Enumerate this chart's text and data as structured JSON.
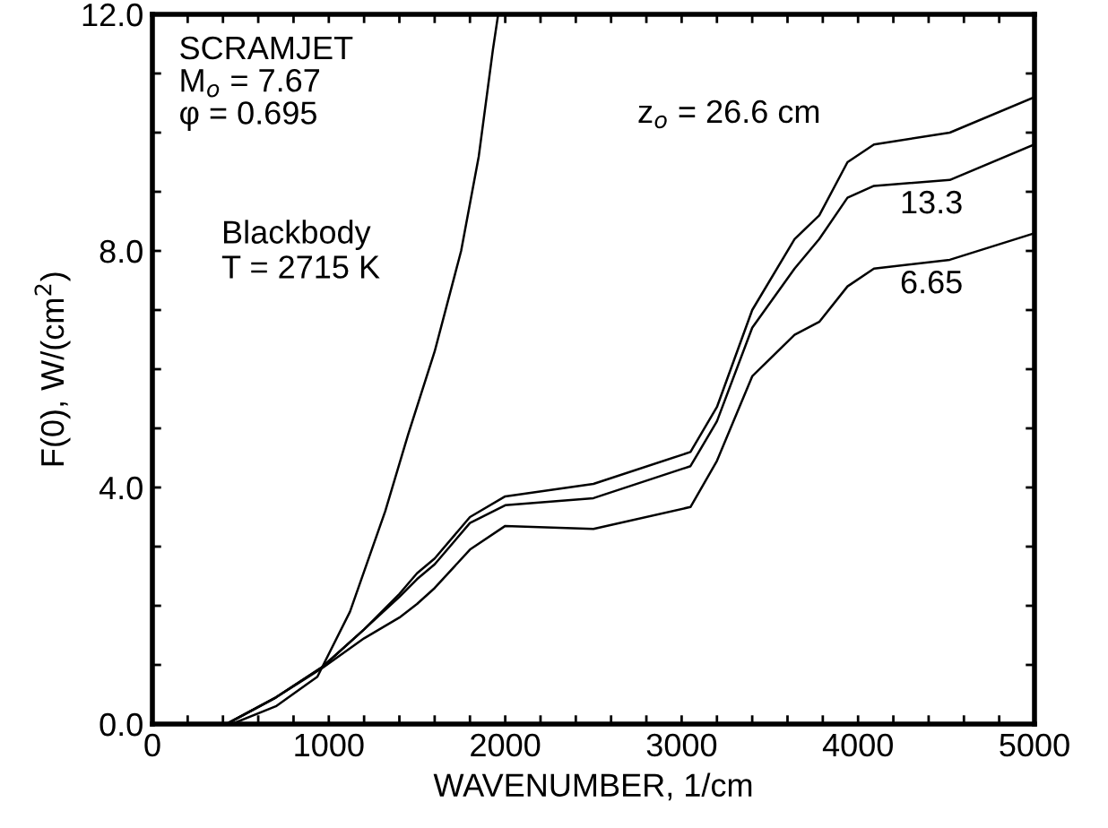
{
  "chart_data": {
    "type": "line",
    "xlabel": "WAVENUMBER, 1/cm",
    "ylabel": "F(0), W/(cm$^{2}$)",
    "annotations": [
      "SCRAMJET\nM$_{o}$ = 7.67\nφ = 0.695"
    ],
    "xlim": [
      0,
      5000
    ],
    "ylim": [
      0,
      12
    ],
    "xticks": [
      0,
      {
        "value": 200,
        "label": null
      },
      {
        "value": 400,
        "label": null
      },
      {
        "value": 600,
        "label": null
      },
      {
        "value": 800,
        "label": null
      },
      1000,
      {
        "value": 1200,
        "label": null
      },
      {
        "value": 1400,
        "label": null
      },
      {
        "value": 1600,
        "label": null
      },
      {
        "value": 1800,
        "label": null
      },
      2000,
      {
        "value": 2200,
        "label": null
      },
      {
        "value": 2400,
        "label": null
      },
      {
        "value": 2600,
        "label": null
      },
      {
        "value": 2800,
        "label": null
      },
      3000,
      {
        "value": 3200,
        "label": null
      },
      {
        "value": 3400,
        "label": null
      },
      {
        "value": 3600,
        "label": null
      },
      {
        "value": 3800,
        "label": null
      },
      4000,
      {
        "value": 4200,
        "label": null
      },
      {
        "value": 4400,
        "label": null
      },
      {
        "value": 4600,
        "label": null
      },
      {
        "value": 4800,
        "label": null
      },
      5000
    ],
    "yticks": [
      {
        "value": 0,
        "label": "0.0"
      },
      {
        "value": 1,
        "label": null
      },
      {
        "value": 2,
        "label": null
      },
      {
        "value": 3,
        "label": null
      },
      {
        "value": 4,
        "label": "4.0"
      },
      {
        "value": 5,
        "label": null
      },
      {
        "value": 6,
        "label": null
      },
      {
        "value": 7,
        "label": null
      },
      {
        "value": 8,
        "label": "8.0"
      },
      {
        "value": 9,
        "label": null
      },
      {
        "value": 10,
        "label": null
      },
      {
        "value": 11,
        "label": null
      },
      {
        "value": 12,
        "label": "12.0"
      }
    ],
    "grid": false,
    "series": [
      {
        "name": "Blackbody\nT = 2715 K",
        "color": "#000000",
        "x": [
          450,
          700,
          935,
          1120,
          1320,
          1450,
          1600,
          1750,
          1850,
          1930,
          1960
        ],
        "values": [
          0,
          0.3,
          0.8,
          1.9,
          3.6,
          4.9,
          6.3,
          8.0,
          9.6,
          11.4,
          12
        ]
      },
      {
        "name": "z$_{o}$ = 26.6 cm",
        "color": "#000000",
        "x": [
          420,
          700,
          965,
          1200,
          1400,
          1500,
          1600,
          1800,
          2000,
          2500,
          3050,
          3200,
          3400,
          3640,
          3780,
          3940,
          4090,
          4520,
          5000
        ],
        "values": [
          0,
          0.45,
          0.97,
          1.6,
          2.2,
          2.55,
          2.8,
          3.5,
          3.85,
          4.06,
          4.6,
          5.36,
          7.0,
          8.2,
          8.6,
          9.5,
          9.8,
          10.0,
          10.6
        ]
      },
      {
        "name": "13.3",
        "color": "#000000",
        "x": [
          420,
          700,
          965,
          1200,
          1400,
          1500,
          1600,
          1800,
          2000,
          2500,
          3050,
          3200,
          3400,
          3640,
          3780,
          3940,
          4090,
          4520,
          5000
        ],
        "values": [
          0,
          0.45,
          0.97,
          1.6,
          2.15,
          2.45,
          2.7,
          3.4,
          3.7,
          3.82,
          4.36,
          5.12,
          6.7,
          7.7,
          8.2,
          8.9,
          9.1,
          9.2,
          9.8
        ]
      },
      {
        "name": "6.65",
        "color": "#000000",
        "x": [
          420,
          700,
          965,
          1200,
          1400,
          1500,
          1600,
          1800,
          2000,
          2500,
          3050,
          3200,
          3400,
          3640,
          3780,
          3940,
          4090,
          4520,
          5000
        ],
        "values": [
          0,
          0.45,
          0.95,
          1.45,
          1.8,
          2.03,
          2.3,
          2.95,
          3.35,
          3.3,
          3.67,
          4.45,
          5.88,
          6.58,
          6.8,
          7.4,
          7.7,
          7.85,
          8.3
        ]
      }
    ]
  }
}
